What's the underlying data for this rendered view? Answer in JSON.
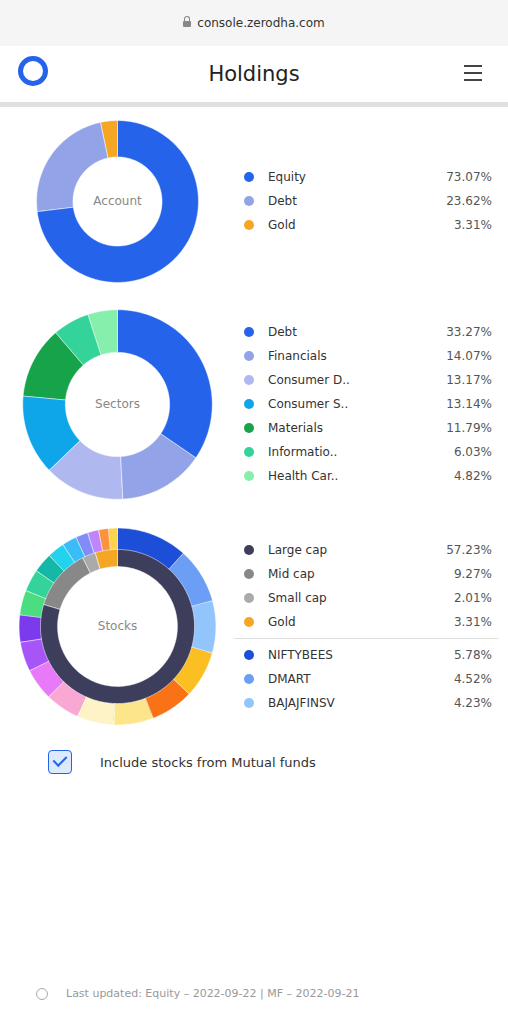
{
  "title": "Holdings",
  "annotations": [
    "console.zerodha.com",
    "Include stocks from Mutual funds",
    "Last updated: Equity – 2022-09-22 | MF – 2022-09-21"
  ],
  "chart_data": [
    {
      "type": "donut",
      "title": "Account",
      "legend": "right",
      "data_labels": true,
      "categories": [
        "Equity",
        "Debt",
        "Gold"
      ],
      "values": [
        73.07,
        23.62,
        3.31
      ],
      "value_labels": [
        "73.07%",
        "23.62%",
        "3.31%"
      ],
      "colors": [
        "#2563eb",
        "#93a3e8",
        "#f5a623"
      ]
    },
    {
      "type": "donut",
      "title": "Sectors",
      "legend": "right",
      "data_labels": true,
      "categories": [
        "Debt",
        "Financials",
        "Consumer D..",
        "Consumer S..",
        "Materials",
        "Informatio..",
        "Health Car.."
      ],
      "values": [
        33.27,
        14.07,
        13.17,
        13.14,
        11.79,
        6.03,
        4.82
      ],
      "value_labels": [
        "33.27%",
        "14.07%",
        "13.17%",
        "13.14%",
        "11.79%",
        "6.03%",
        "4.82%"
      ],
      "colors": [
        "#2563eb",
        "#93a3e8",
        "#b0b8f0",
        "#0ea5e9",
        "#16a34a",
        "#34d399",
        "#86efac"
      ]
    },
    {
      "type": "donut",
      "title": "Stocks",
      "legend": "right",
      "data_labels": true,
      "series": [
        {
          "categories": [
            "Large cap",
            "Mid cap",
            "Small cap",
            "Gold"
          ],
          "values": [
            57.23,
            9.27,
            2.01,
            3.31
          ],
          "value_labels": [
            "57.23%",
            "9.27%",
            "2.01%",
            "3.31%"
          ],
          "colors": [
            "#3d3d5c",
            "#888888",
            "#aaaaaa",
            "#f5a623"
          ]
        },
        {
          "categories": [
            "NIFTYBEES",
            "DMART",
            "BAJAJFINSV",
            null,
            null,
            null,
            null,
            null,
            null,
            null,
            null,
            null,
            null,
            null,
            null,
            null,
            null,
            null,
            null,
            null
          ],
          "values": [
            5.78,
            4.52,
            4.23,
            3.8,
            3.5,
            3.2,
            3.0,
            2.8,
            2.6,
            2.4,
            2.2,
            2.0,
            1.8,
            1.6,
            1.4,
            1.2,
            1.0,
            0.9,
            0.8,
            0.7
          ],
          "value_labels": [
            "5.78%",
            "4.52%",
            "4.23%",
            null,
            null,
            null,
            null,
            null,
            null,
            null,
            null,
            null,
            null,
            null,
            null,
            null,
            null,
            null,
            null,
            null
          ],
          "colors": [
            "#1d4ed8",
            "#6d9ef5",
            "#93c5fd",
            "#fbbf24",
            "#f97316",
            "#fde68a",
            "#fef3c7",
            "#f9a8d4",
            "#e879f9",
            "#a855f7",
            "#7c3aed",
            "#4ade80",
            "#34d399",
            "#14b8a6",
            "#22d3ee",
            "#38bdf8",
            "#818cf8",
            "#c084fc",
            "#fb923c",
            "#fcd34d"
          ]
        }
      ]
    }
  ]
}
